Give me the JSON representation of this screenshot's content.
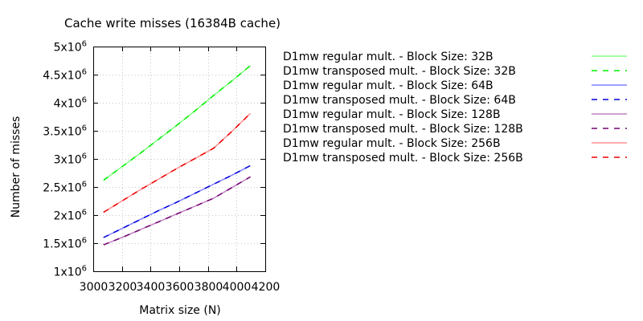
{
  "chart_data": {
    "type": "line",
    "title": "Cache write misses (16384B cache)",
    "xlabel": "Matrix size (N)",
    "ylabel": "Number of misses",
    "xlim": [
      3000,
      4200
    ],
    "ylim": [
      1000000,
      5000000
    ],
    "x_ticks": [
      {
        "value": 3000,
        "label": "3000"
      },
      {
        "value": 3200,
        "label": "3200"
      },
      {
        "value": 3400,
        "label": "3400"
      },
      {
        "value": 3600,
        "label": "3600"
      },
      {
        "value": 3800,
        "label": "3800"
      },
      {
        "value": 4000,
        "label": "4000"
      },
      {
        "value": 4200,
        "label": "4200"
      }
    ],
    "y_ticks": [
      {
        "value": 1000000,
        "mant": "1x10",
        "exp": "6"
      },
      {
        "value": 1500000,
        "mant": "1.5x10",
        "exp": "6"
      },
      {
        "value": 2000000,
        "mant": "2x10",
        "exp": "6"
      },
      {
        "value": 2500000,
        "mant": "2.5x10",
        "exp": "6"
      },
      {
        "value": 3000000,
        "mant": "3x10",
        "exp": "6"
      },
      {
        "value": 3500000,
        "mant": "3.5x10",
        "exp": "6"
      },
      {
        "value": 4000000,
        "mant": "4x10",
        "exp": "6"
      },
      {
        "value": 4500000,
        "mant": "4.5x10",
        "exp": "6"
      },
      {
        "value": 5000000,
        "mant": "5x10",
        "exp": "6"
      }
    ],
    "grid": true,
    "legend_position": "right",
    "x": [
      3072,
      3200,
      3328,
      3456,
      3584,
      3712,
      3840,
      3968,
      4096
    ],
    "series": [
      {
        "name": "D1mw regular mult. - Block Size: 32B",
        "color": "#80ff80",
        "dashed": false,
        "values": [
          2620000,
          2860000,
          3100000,
          3350000,
          3600000,
          3860000,
          4130000,
          4390000,
          4660000
        ]
      },
      {
        "name": "D1mw transposed mult. - Block Size: 32B",
        "color": "#00ee00",
        "dashed": true,
        "values": [
          2620000,
          2860000,
          3100000,
          3350000,
          3600000,
          3860000,
          4130000,
          4390000,
          4660000
        ]
      },
      {
        "name": "D1mw regular mult. - Block Size: 64B",
        "color": "#8080ff",
        "dashed": false,
        "values": [
          1600000,
          1760000,
          1920000,
          2080000,
          2230000,
          2390000,
          2550000,
          2710000,
          2880000
        ]
      },
      {
        "name": "D1mw transposed mult. - Block Size: 64B",
        "color": "#0000dd",
        "dashed": true,
        "values": [
          1600000,
          1760000,
          1920000,
          2080000,
          2230000,
          2390000,
          2550000,
          2710000,
          2880000
        ]
      },
      {
        "name": "D1mw regular mult. - Block Size: 128B",
        "color": "#c080c0",
        "dashed": false,
        "values": [
          1470000,
          1600000,
          1740000,
          1880000,
          2020000,
          2160000,
          2300000,
          2490000,
          2680000
        ]
      },
      {
        "name": "D1mw transposed mult. - Block Size: 128B",
        "color": "#700070",
        "dashed": true,
        "values": [
          1470000,
          1600000,
          1740000,
          1880000,
          2020000,
          2160000,
          2300000,
          2490000,
          2680000
        ]
      },
      {
        "name": "D1mw regular mult. - Block Size: 256B",
        "color": "#ff9090",
        "dashed": false,
        "values": [
          2050000,
          2250000,
          2450000,
          2640000,
          2830000,
          3010000,
          3190000,
          3490000,
          3810000
        ]
      },
      {
        "name": "D1mw transposed mult. - Block Size: 256B",
        "color": "#ee0000",
        "dashed": true,
        "values": [
          2050000,
          2250000,
          2450000,
          2640000,
          2830000,
          3010000,
          3190000,
          3490000,
          3810000
        ]
      }
    ]
  }
}
